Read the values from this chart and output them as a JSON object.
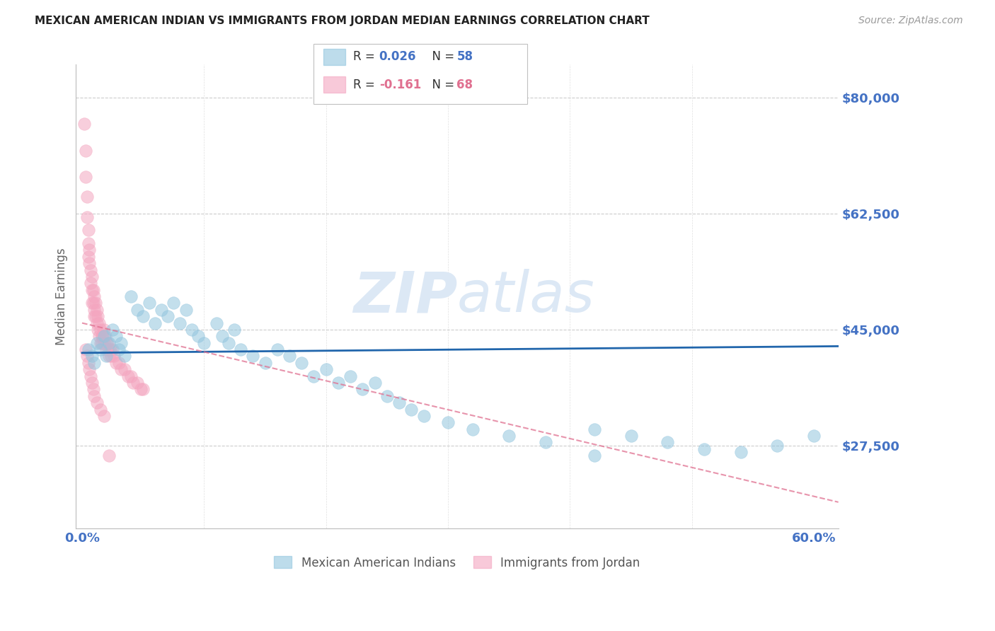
{
  "title": "MEXICAN AMERICAN INDIAN VS IMMIGRANTS FROM JORDAN MEDIAN EARNINGS CORRELATION CHART",
  "source": "Source: ZipAtlas.com",
  "ylabel": "Median Earnings",
  "ymin": 15000,
  "ymax": 85000,
  "xmin": -0.005,
  "xmax": 0.62,
  "blue_color": "#92c5de",
  "pink_color": "#f4a6c0",
  "blue_line_color": "#2166ac",
  "pink_line_color": "#e07090",
  "grid_color": "#cccccc",
  "axis_label_color": "#4472c4",
  "background_color": "#ffffff",
  "watermark_color": "#dce8f5",
  "ytick_vals": [
    27500,
    45000,
    62500,
    80000
  ],
  "ytick_labels": [
    "$27,500",
    "$45,000",
    "$62,500",
    "$80,000"
  ],
  "blue_scatter_x": [
    0.005,
    0.008,
    0.01,
    0.012,
    0.015,
    0.018,
    0.02,
    0.022,
    0.025,
    0.028,
    0.03,
    0.032,
    0.035,
    0.04,
    0.045,
    0.05,
    0.055,
    0.06,
    0.065,
    0.07,
    0.075,
    0.08,
    0.085,
    0.09,
    0.095,
    0.1,
    0.11,
    0.115,
    0.12,
    0.125,
    0.13,
    0.14,
    0.15,
    0.16,
    0.17,
    0.18,
    0.19,
    0.2,
    0.21,
    0.22,
    0.23,
    0.24,
    0.25,
    0.26,
    0.27,
    0.28,
    0.3,
    0.32,
    0.35,
    0.38,
    0.42,
    0.45,
    0.48,
    0.51,
    0.54,
    0.57,
    0.6,
    0.42
  ],
  "blue_scatter_y": [
    42000,
    41000,
    40000,
    43000,
    42000,
    44000,
    41000,
    43000,
    45000,
    44000,
    42000,
    43000,
    41000,
    50000,
    48000,
    47000,
    49000,
    46000,
    48000,
    47000,
    49000,
    46000,
    48000,
    45000,
    44000,
    43000,
    46000,
    44000,
    43000,
    45000,
    42000,
    41000,
    40000,
    42000,
    41000,
    40000,
    38000,
    39000,
    37000,
    38000,
    36000,
    37000,
    35000,
    34000,
    33000,
    32000,
    31000,
    30000,
    29000,
    28000,
    30000,
    29000,
    28000,
    27000,
    26500,
    27500,
    29000,
    26000
  ],
  "pink_scatter_x": [
    0.002,
    0.003,
    0.003,
    0.004,
    0.004,
    0.005,
    0.005,
    0.005,
    0.006,
    0.006,
    0.007,
    0.007,
    0.008,
    0.008,
    0.008,
    0.009,
    0.009,
    0.01,
    0.01,
    0.01,
    0.011,
    0.011,
    0.012,
    0.012,
    0.013,
    0.013,
    0.014,
    0.014,
    0.015,
    0.015,
    0.016,
    0.016,
    0.017,
    0.018,
    0.018,
    0.019,
    0.02,
    0.02,
    0.021,
    0.022,
    0.022,
    0.023,
    0.024,
    0.025,
    0.026,
    0.028,
    0.03,
    0.032,
    0.035,
    0.038,
    0.04,
    0.042,
    0.045,
    0.048,
    0.05,
    0.003,
    0.004,
    0.005,
    0.006,
    0.007,
    0.008,
    0.009,
    0.01,
    0.012,
    0.015,
    0.018,
    0.022
  ],
  "pink_scatter_y": [
    76000,
    72000,
    68000,
    65000,
    62000,
    60000,
    58000,
    56000,
    57000,
    55000,
    54000,
    52000,
    53000,
    51000,
    49000,
    51000,
    49000,
    50000,
    48000,
    47000,
    49000,
    47000,
    48000,
    46000,
    47000,
    45000,
    46000,
    44000,
    45000,
    43000,
    44000,
    43000,
    44000,
    45000,
    43000,
    44000,
    43000,
    42000,
    43000,
    42000,
    41000,
    42000,
    41000,
    42000,
    41000,
    40000,
    40000,
    39000,
    39000,
    38000,
    38000,
    37000,
    37000,
    36000,
    36000,
    42000,
    41000,
    40000,
    39000,
    38000,
    37000,
    36000,
    35000,
    34000,
    33000,
    32000,
    26000
  ],
  "blue_line_x": [
    0.0,
    0.62
  ],
  "blue_line_y": [
    41500,
    42500
  ],
  "pink_line_x": [
    0.0,
    0.62
  ],
  "pink_line_y": [
    46000,
    19000
  ]
}
